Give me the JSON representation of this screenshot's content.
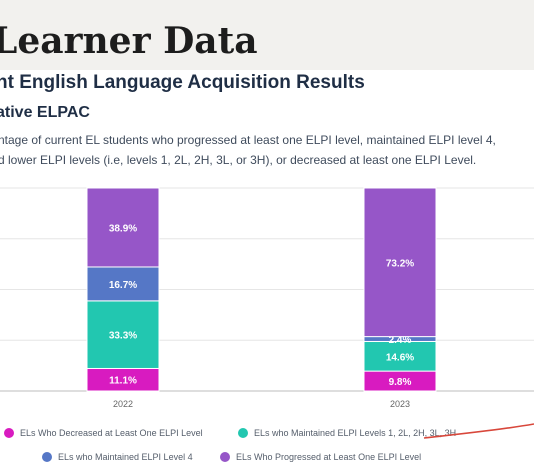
{
  "page": {
    "heading": "Learner Data",
    "subtitle": "nt English Language Acquisition Results",
    "subtitle2": "ative ELPAC",
    "description_line1": "ntage of current EL students who progressed at least one ELPI level, maintained ELPI level 4,",
    "description_line2": "d lower ELPI levels (i.e, levels 1, 2L, 2H, 3L, or 3H), or decreased at least one ELPI Level."
  },
  "colors": {
    "decreased": "#d81bc0",
    "maintained_lower": "#22c7b0",
    "maintained_level4": "#5577c6",
    "progressed": "#9656c8",
    "annotation": "#d8473b"
  },
  "chart_data": {
    "type": "bar",
    "stacked": true,
    "categories": [
      "2022",
      "2023"
    ],
    "series": [
      {
        "name": "ELs Who Decreased at Least One ELPI Level",
        "values": [
          11.1,
          9.8
        ],
        "labels": [
          "11.1%",
          "9.8%"
        ]
      },
      {
        "name": "ELs who Maintained ELPI Levels 1, 2L, 2H, 3L, 3H",
        "values": [
          33.3,
          14.6
        ],
        "labels": [
          "33.3%",
          "14.6%"
        ]
      },
      {
        "name": "ELs who Maintained ELPI Level 4",
        "values": [
          16.7,
          2.4
        ],
        "labels": [
          "16.7%",
          "2.4%"
        ]
      },
      {
        "name": "ELs Who Progressed at Least One ELPI Level",
        "values": [
          38.9,
          73.2
        ],
        "labels": [
          "38.9%",
          "73.2%"
        ]
      }
    ],
    "ylim": [
      0,
      100
    ],
    "grid": true,
    "legend_position": "bottom"
  }
}
